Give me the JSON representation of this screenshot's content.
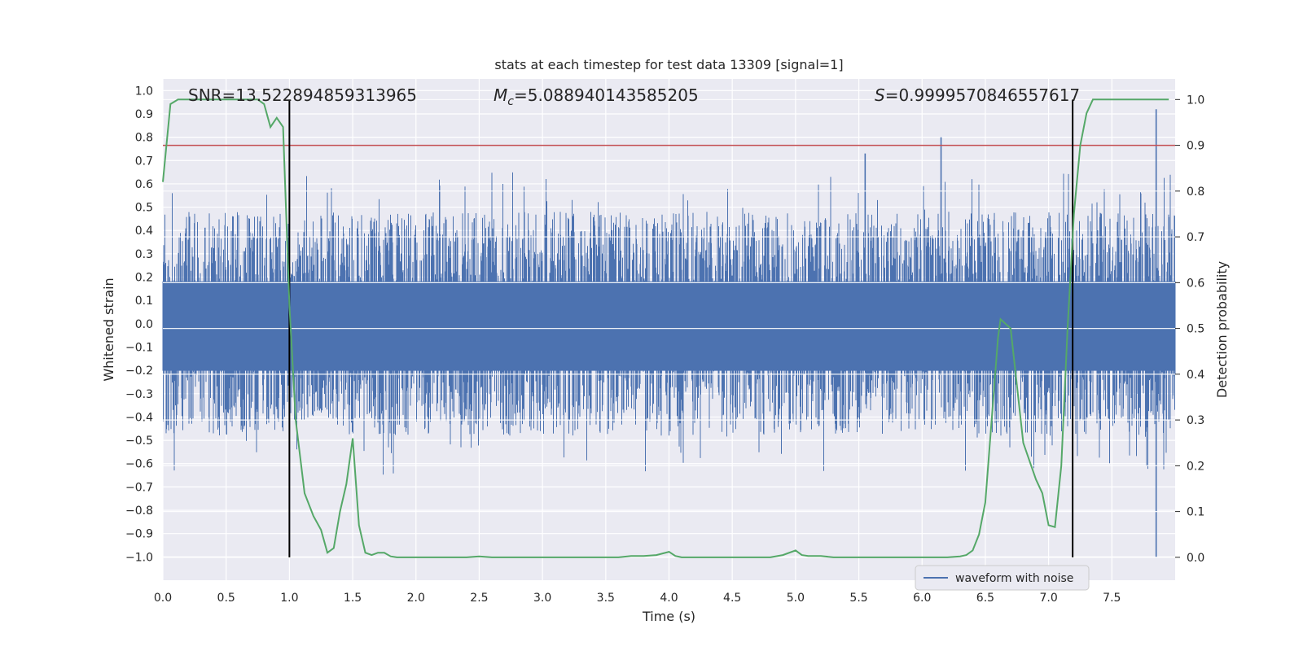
{
  "chart_data": {
    "type": "line",
    "title": "stats at each timestep for test data 13309 [signal=1]",
    "xlabel": "Time (s)",
    "ylabel_left": "Whitened strain",
    "ylabel_right": "Detection probability",
    "xlim": [
      0,
      8
    ],
    "ylim_left": [
      -1.1,
      1.05
    ],
    "ylim_right": [
      -0.05,
      1.045
    ],
    "x_ticks": [
      "0.0",
      "0.5",
      "1.0",
      "1.5",
      "2.0",
      "2.5",
      "3.0",
      "3.5",
      "4.0",
      "4.5",
      "5.0",
      "5.5",
      "6.0",
      "6.5",
      "7.0",
      "7.5"
    ],
    "y_left_ticks": [
      "1.0",
      "0.9",
      "0.8",
      "0.7",
      "0.6",
      "0.5",
      "0.4",
      "0.3",
      "0.2",
      "0.1",
      "0.0",
      "−0.1",
      "−0.2",
      "−0.3",
      "−0.4",
      "−0.5",
      "−0.6",
      "−0.7",
      "−0.8",
      "−0.9",
      "−1.0"
    ],
    "y_right_ticks": [
      "1.0",
      "0.9",
      "0.8",
      "0.7",
      "0.6",
      "0.5",
      "0.4",
      "0.3",
      "0.2",
      "0.1",
      "0.0"
    ],
    "annotations": {
      "snr": "SNR=13.522894859313965",
      "mc_symbol": "M",
      "mc_sub": "c",
      "mc_value": "=5.088940143585205",
      "s_symbol": "S",
      "s_value": "=0.9999570846557617"
    },
    "legend": "waveform with noise",
    "threshold": 0.9,
    "vlines": [
      1.0,
      7.19
    ],
    "waveform": {
      "name": "waveform with noise",
      "typical_range": [
        -0.45,
        0.6
      ],
      "peaks": [
        {
          "x": 6.15,
          "y": 0.8
        },
        {
          "x": 7.85,
          "y": 0.92
        },
        {
          "x": 7.85,
          "y": -1.0
        },
        {
          "x": 5.55,
          "y": 0.73
        }
      ]
    },
    "series": [
      {
        "name": "detection probability",
        "x": [
          0.0,
          0.06,
          0.12,
          0.2,
          0.3,
          0.4,
          0.5,
          0.6,
          0.7,
          0.75,
          0.8,
          0.85,
          0.9,
          0.95,
          1.0,
          1.05,
          1.12,
          1.19,
          1.25,
          1.3,
          1.35,
          1.4,
          1.45,
          1.5,
          1.55,
          1.6,
          1.65,
          1.7,
          1.75,
          1.8,
          1.85,
          1.9,
          2.0,
          2.1,
          2.2,
          2.3,
          2.4,
          2.5,
          2.6,
          2.7,
          2.8,
          2.9,
          3.0,
          3.2,
          3.4,
          3.6,
          3.7,
          3.8,
          3.9,
          4.0,
          4.05,
          4.1,
          4.2,
          4.3,
          4.4,
          4.5,
          4.6,
          4.7,
          4.8,
          4.9,
          5.0,
          5.05,
          5.1,
          5.2,
          5.3,
          5.4,
          5.5,
          5.6,
          5.7,
          5.8,
          5.9,
          6.0,
          6.1,
          6.2,
          6.3,
          6.35,
          6.4,
          6.45,
          6.5,
          6.6,
          6.62,
          6.7,
          6.8,
          6.9,
          6.95,
          7.0,
          7.05,
          7.1,
          7.15,
          7.2,
          7.25,
          7.3,
          7.35,
          7.4,
          7.5,
          7.6,
          7.7,
          7.8,
          7.95
        ],
        "y": [
          0.82,
          0.99,
          1.0,
          1.0,
          1.0,
          1.0,
          1.0,
          1.0,
          1.0,
          1.0,
          0.99,
          0.94,
          0.96,
          0.94,
          0.55,
          0.3,
          0.14,
          0.09,
          0.06,
          0.01,
          0.02,
          0.1,
          0.16,
          0.26,
          0.07,
          0.01,
          0.005,
          0.01,
          0.01,
          0.002,
          0.0,
          0.0,
          0.0,
          0.0,
          0.0,
          0.0,
          0.0,
          0.002,
          0.0,
          0.0,
          0.0,
          0.0,
          0.0,
          0.0,
          0.0,
          0.0,
          0.003,
          0.003,
          0.005,
          0.012,
          0.003,
          0.0,
          0.0,
          0.0,
          0.0,
          0.0,
          0.0,
          0.0,
          0.0,
          0.005,
          0.015,
          0.005,
          0.003,
          0.003,
          0.0,
          0.0,
          0.0,
          0.0,
          0.0,
          0.0,
          0.0,
          0.0,
          0.0,
          0.0,
          0.002,
          0.005,
          0.015,
          0.05,
          0.12,
          0.48,
          0.52,
          0.5,
          0.25,
          0.17,
          0.14,
          0.07,
          0.066,
          0.2,
          0.5,
          0.75,
          0.9,
          0.97,
          1.0,
          1.0,
          1.0,
          1.0,
          1.0,
          1.0,
          1.0
        ],
        "color": "#55a868"
      }
    ],
    "colors": {
      "waveform": "#4c72b0",
      "probability": "#55a868",
      "threshold": "#c44e52",
      "background": "#eaeaf2",
      "grid": "#ffffff"
    }
  }
}
